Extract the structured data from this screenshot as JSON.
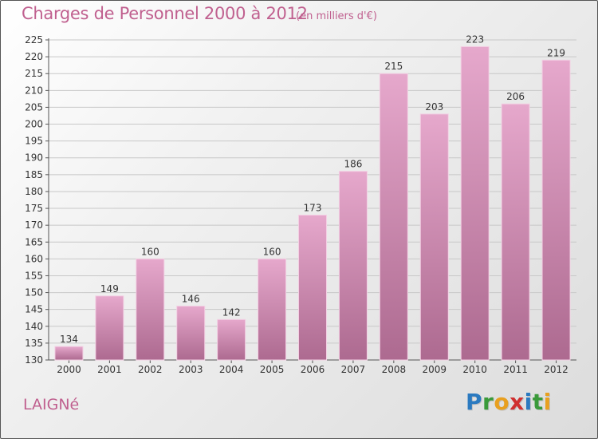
{
  "header": {
    "title": "Charges de Personnel 2000 à 2012",
    "subtitle": "(en milliers d'€)"
  },
  "footer": {
    "city": "LAIGNé",
    "logo": [
      "P",
      "r",
      "o",
      "x",
      "i",
      "t",
      "i"
    ]
  },
  "colors": {
    "accent": "#c0608f",
    "bar_top": "#e6a8cc",
    "bar_bottom": "#ad6a90",
    "logo": [
      "#2b7ac0",
      "#3a9a3a",
      "#e8a020",
      "#d03030",
      "#2b7ac0",
      "#3a9a3a",
      "#e8a020"
    ]
  },
  "chart_data": {
    "type": "bar",
    "categories": [
      "2000",
      "2001",
      "2002",
      "2003",
      "2004",
      "2005",
      "2006",
      "2007",
      "2008",
      "2009",
      "2010",
      "2011",
      "2012"
    ],
    "values": [
      134,
      149,
      160,
      146,
      142,
      160,
      173,
      186,
      215,
      203,
      223,
      206,
      219
    ],
    "data_labels": [
      "134",
      "149",
      "160",
      "146",
      "142",
      "160",
      "173",
      "186",
      "215",
      "203",
      "223",
      "206",
      "219"
    ],
    "yticks": [
      "130",
      "135",
      "140",
      "145",
      "150",
      "155",
      "160",
      "165",
      "170",
      "175",
      "180",
      "185",
      "190",
      "195",
      "200",
      "205",
      "210",
      "215",
      "220",
      "225"
    ],
    "ylim": [
      130,
      225
    ],
    "grid": true
  }
}
